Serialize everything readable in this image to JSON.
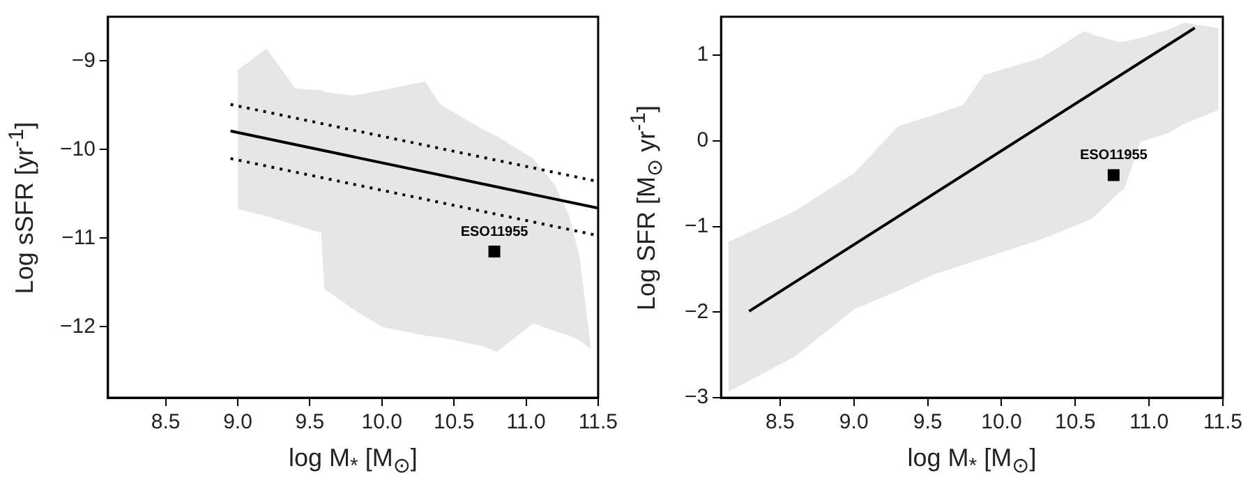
{
  "chart_data": [
    {
      "type": "line",
      "xlabel": "log M$_{*}$ [M$_{⊙}$]",
      "ylabel": "Log sSFR [yr$^{-1}$]",
      "xlim": [
        8.1,
        11.5
      ],
      "ylim": [
        -12.8,
        -8.5
      ],
      "xticks": [
        {
          "value": 8.5,
          "label": "8.5"
        },
        {
          "value": 9,
          "label": "9.0"
        },
        {
          "value": 9.5,
          "label": "9.5"
        },
        {
          "value": 10,
          "label": "10.0"
        },
        {
          "value": 10.5,
          "label": "10.5"
        },
        {
          "value": 11,
          "label": "11.0"
        },
        {
          "value": 11.5,
          "label": "11.5"
        }
      ],
      "yticks": [
        -12,
        -11,
        -10,
        -9
      ],
      "series": [
        {
          "type": "area",
          "color": "#e6e6e6",
          "x": [
            9.0,
            9.2,
            9.4,
            9.58,
            9.6,
            9.8,
            10.0,
            10.3,
            10.4,
            10.5,
            10.7,
            10.8,
            11.05,
            11.2,
            11.3,
            11.37,
            11.45
          ],
          "values": [
            null,
            null,
            null,
            null,
            null,
            null,
            null,
            null,
            null,
            null,
            null,
            null,
            null,
            null,
            null,
            null,
            null
          ],
          "upper": [
            -9.1,
            -8.86,
            -9.31,
            -9.33,
            -9.35,
            -9.39,
            -9.33,
            -9.23,
            -9.48,
            -9.58,
            -9.77,
            -9.85,
            -10.1,
            -10.4,
            -10.75,
            -11.2,
            -12.25
          ],
          "lower": [
            -10.67,
            -10.75,
            -10.85,
            -10.94,
            -11.57,
            -11.8,
            -12.0,
            -12.1,
            -12.12,
            -12.15,
            -12.22,
            -12.28,
            -11.96,
            -12.05,
            -12.1,
            -12.15,
            -12.25
          ]
        },
        {
          "type": "line",
          "color": "#000000",
          "line_style": "solid",
          "x": [
            8.95,
            11.5
          ],
          "values": [
            -9.79,
            -10.66
          ]
        },
        {
          "type": "line",
          "color": "#000000",
          "line_style": "dotted",
          "x": [
            8.95,
            11.5
          ],
          "values": [
            -9.49,
            -10.36
          ]
        },
        {
          "type": "line",
          "color": "#000000",
          "line_style": "dotted",
          "x": [
            8.95,
            11.5
          ],
          "values": [
            -10.1,
            -10.97
          ]
        },
        {
          "type": "scatter",
          "color": "#000000",
          "marker": "square",
          "x": [
            10.78
          ],
          "values": [
            -11.15
          ]
        }
      ],
      "annotations": [
        {
          "text": "ESO11955",
          "x": 10.78,
          "y": -11.15
        }
      ]
    },
    {
      "type": "line",
      "xlabel": "log M$_{*}$ [M$_{⊙}$]",
      "ylabel": "Log SFR  [M$_{⊙}$ yr$^{-1}$]",
      "xlim": [
        8.1,
        11.5
      ],
      "ylim": [
        -3,
        1.45
      ],
      "xticks": [
        {
          "value": 8.5,
          "label": "8.5"
        },
        {
          "value": 9,
          "label": "9.0"
        },
        {
          "value": 9.5,
          "label": "9.5"
        },
        {
          "value": 10,
          "label": "10.0"
        },
        {
          "value": 10.5,
          "label": "10.5"
        },
        {
          "value": 11,
          "label": "11.0"
        },
        {
          "value": 11.5,
          "label": "11.5"
        }
      ],
      "yticks": [
        -3,
        -2,
        -1,
        0,
        1
      ],
      "series": [
        {
          "type": "area",
          "color": "#e6e6e6",
          "x": [
            8.15,
            8.6,
            9.0,
            9.3,
            9.54,
            9.74,
            9.88,
            10.27,
            10.56,
            10.62,
            10.8,
            10.83,
            10.94,
            11.13,
            11.24,
            11.47
          ],
          "values": [
            null,
            null,
            null,
            null,
            null,
            null,
            null,
            null,
            null,
            null,
            null,
            null,
            null,
            null,
            null,
            null
          ],
          "upper": [
            -1.18,
            -0.82,
            -0.38,
            0.17,
            0.3,
            0.42,
            0.77,
            0.97,
            1.28,
            1.24,
            1.15,
            1.16,
            1.2,
            1.3,
            1.38,
            1.32
          ],
          "lower": [
            -2.93,
            -2.52,
            -1.97,
            -1.75,
            -1.56,
            -1.45,
            -1.37,
            -1.15,
            -0.95,
            -0.9,
            -0.6,
            -0.57,
            -0.01,
            0.09,
            0.2,
            0.36
          ]
        },
        {
          "type": "line",
          "color": "#000000",
          "line_style": "solid",
          "x": [
            8.29,
            11.31
          ],
          "values": [
            -1.99,
            1.32
          ]
        },
        {
          "type": "scatter",
          "color": "#000000",
          "marker": "square",
          "x": [
            10.76
          ],
          "values": [
            -0.4
          ]
        }
      ],
      "annotations": [
        {
          "text": "ESO11955",
          "x": 10.76,
          "y": -0.4
        }
      ]
    }
  ]
}
